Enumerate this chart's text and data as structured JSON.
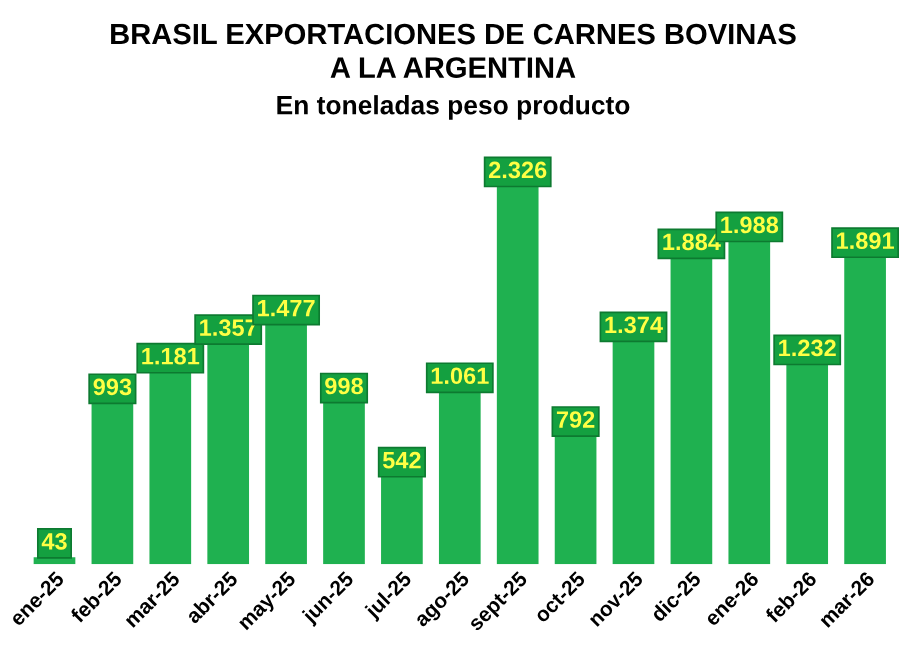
{
  "chart_data": {
    "type": "bar",
    "title": "BRASIL EXPORTACIONES DE CARNES BOVINAS\nA LA ARGENTINA",
    "subtitle": "En toneladas peso producto",
    "categories": [
      "ene-25",
      "feb-25",
      "mar-25",
      "abr-25",
      "may-25",
      "jun-25",
      "jul-25",
      "ago-25",
      "sept-25",
      "oct-25",
      "nov-25",
      "dic-25",
      "ene-26",
      "feb-26",
      "mar-26"
    ],
    "values": [
      43,
      993,
      1181,
      1357,
      1477,
      998,
      542,
      1061,
      2326,
      792,
      1374,
      1884,
      1988,
      1232,
      1891
    ],
    "value_labels": [
      "43",
      "993",
      "1.181",
      "1.357",
      "1.477",
      "998",
      "542",
      "1.061",
      "2.326",
      "792",
      "1.374",
      "1.884",
      "1.988",
      "1.232",
      "1.891"
    ],
    "color": "#1fb150",
    "ylim": [
      0,
      2500
    ],
    "grid": false,
    "legend": false
  }
}
